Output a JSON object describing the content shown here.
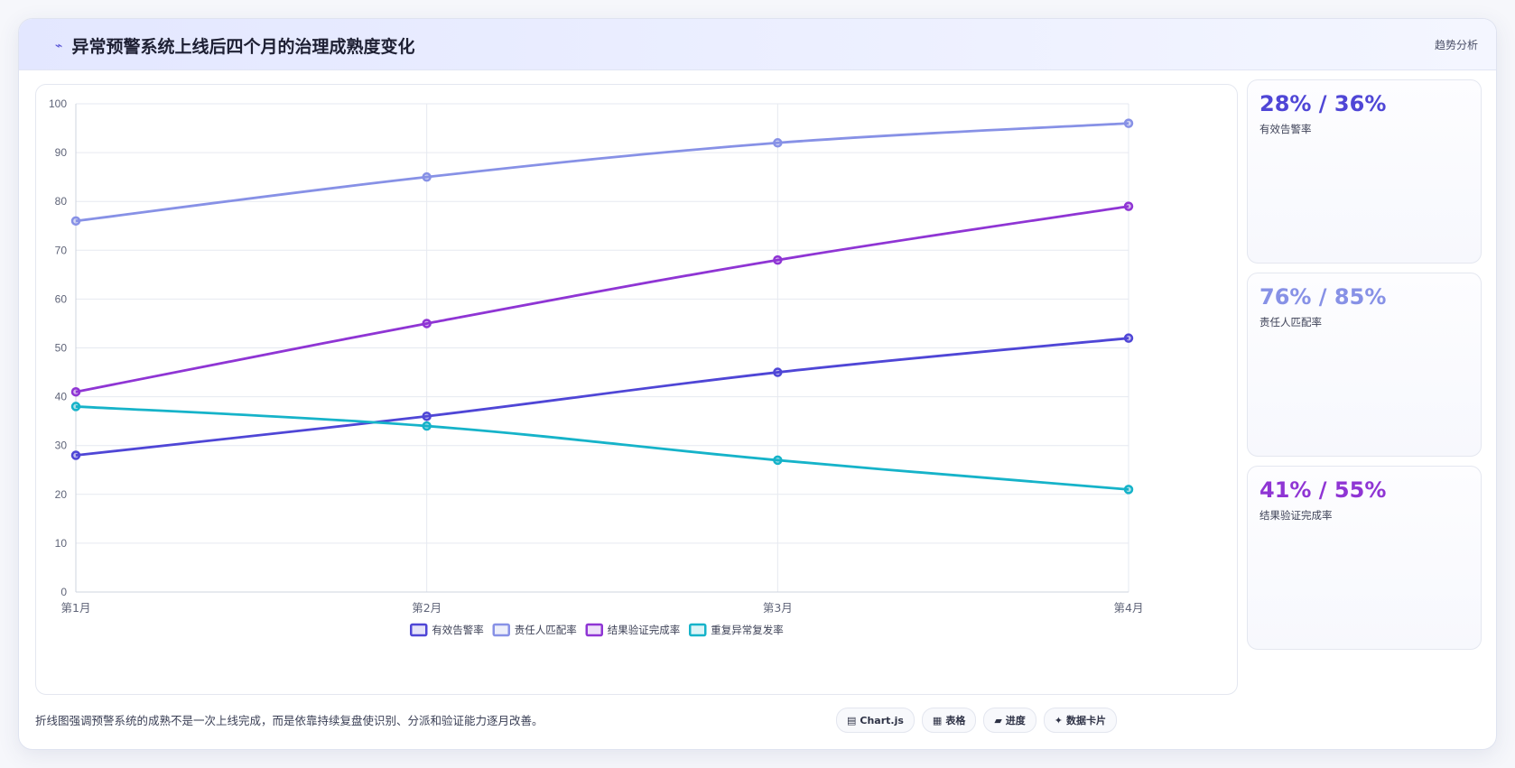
{
  "header": {
    "title_icon": "⌁",
    "title": "异常预警系统上线后四个月的治理成熟度变化",
    "tag": "趋势分析"
  },
  "chart_data": {
    "type": "line",
    "categories": [
      "第1月",
      "第2月",
      "第3月",
      "第4月"
    ],
    "ylim": [
      0,
      100
    ],
    "yticks": [
      0,
      10,
      20,
      30,
      40,
      50,
      60,
      70,
      80,
      90,
      100
    ],
    "grid": true,
    "legend_position": "bottom",
    "series": [
      {
        "name": "有效告警率",
        "values": [
          28,
          36,
          45,
          52
        ],
        "color": "#4f46d6"
      },
      {
        "name": "责任人匹配率",
        "values": [
          76,
          85,
          92,
          96
        ],
        "color": "#8791e6"
      },
      {
        "name": "结果验证完成率",
        "values": [
          41,
          55,
          68,
          79
        ],
        "color": "#8f35d4"
      },
      {
        "name": "重复异常复发率",
        "values": [
          38,
          34,
          27,
          21
        ],
        "color": "#16b3c9"
      }
    ]
  },
  "stats": [
    {
      "value": "28% / 36%",
      "label": "有效告警率",
      "color": "#4f46d6"
    },
    {
      "value": "76% / 85%",
      "label": "责任人匹配率",
      "color": "#8791e6"
    },
    {
      "value": "41% / 55%",
      "label": "结果验证完成率",
      "color": "#8f35d4"
    }
  ],
  "footer": {
    "text": "折线图强调预警系统的成熟不是一次上线完成，而是依靠持续复盘使识别、分派和验证能力逐月改善。",
    "pills": [
      {
        "icon": "▤",
        "label": "Chart.js"
      },
      {
        "icon": "▦",
        "label": "表格"
      },
      {
        "icon": "▰",
        "label": "进度"
      },
      {
        "icon": "✦",
        "label": "数据卡片"
      }
    ]
  }
}
